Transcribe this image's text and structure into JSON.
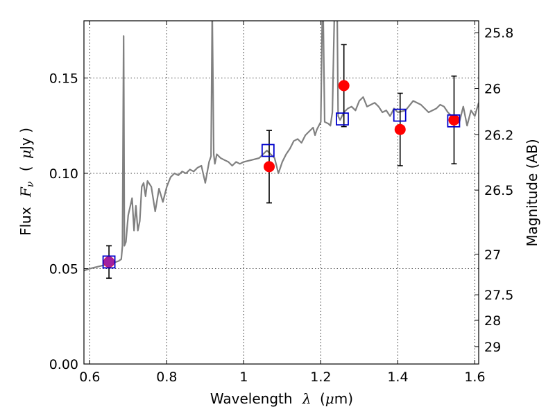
{
  "chart_data": {
    "type": "line",
    "xlabel_prefix": "Wavelength",
    "xlabel_math": "λ",
    "xlabel_suffix_pre": "(",
    "xlabel_math2": "μ",
    "xlabel_suffix": "m)",
    "ylabel_prefix": "Flux",
    "ylabel_math": "F",
    "ylabel_sub": "ν",
    "ylabel_open": "(",
    "ylabel_math2": "μ",
    "ylabel_suffix": "Jy )",
    "y2label": "Magnitude (AB)",
    "xlim": [
      0.585,
      1.61
    ],
    "ylim": [
      0.0,
      0.18
    ],
    "grid": true,
    "x_ticks": [
      {
        "v": 0.6,
        "label": "0.6"
      },
      {
        "v": 0.8,
        "label": "0.8"
      },
      {
        "v": 1.0,
        "label": "1"
      },
      {
        "v": 1.2,
        "label": "1.2"
      },
      {
        "v": 1.4,
        "label": "1.4"
      },
      {
        "v": 1.6,
        "label": "1.6"
      }
    ],
    "y_ticks": [
      {
        "v": 0.0,
        "label": "0.00"
      },
      {
        "v": 0.05,
        "label": "0.05"
      },
      {
        "v": 0.1,
        "label": "0.10"
      },
      {
        "v": 0.15,
        "label": "0.15"
      }
    ],
    "y2_ticks": [
      {
        "mag": 25.8,
        "label": "25.8"
      },
      {
        "mag": 26.0,
        "label": "26"
      },
      {
        "mag": 26.2,
        "label": "26.2"
      },
      {
        "mag": 26.5,
        "label": "26.5"
      },
      {
        "mag": 27.0,
        "label": "27"
      },
      {
        "mag": 27.5,
        "label": "27.5"
      },
      {
        "mag": 28.0,
        "label": "28"
      },
      {
        "mag": 29.0,
        "label": "29"
      }
    ],
    "model_spectrum": {
      "color": "#808080",
      "x": [
        0.585,
        0.6,
        0.62,
        0.64,
        0.66,
        0.675,
        0.682,
        0.685,
        0.688,
        0.69,
        0.694,
        0.7,
        0.71,
        0.715,
        0.72,
        0.725,
        0.73,
        0.735,
        0.74,
        0.745,
        0.75,
        0.76,
        0.77,
        0.78,
        0.79,
        0.8,
        0.81,
        0.82,
        0.83,
        0.84,
        0.85,
        0.86,
        0.87,
        0.88,
        0.89,
        0.9,
        0.91,
        0.915,
        0.918,
        0.922,
        0.925,
        0.93,
        0.94,
        0.95,
        0.96,
        0.97,
        0.98,
        0.99,
        1.0,
        1.02,
        1.04,
        1.06,
        1.08,
        1.09,
        1.095,
        1.1,
        1.11,
        1.12,
        1.13,
        1.14,
        1.15,
        1.16,
        1.17,
        1.18,
        1.185,
        1.19,
        1.195,
        1.2,
        1.205,
        1.21,
        1.22,
        1.225,
        1.23,
        1.235,
        1.24,
        1.245,
        1.25,
        1.26,
        1.27,
        1.28,
        1.29,
        1.3,
        1.31,
        1.32,
        1.33,
        1.34,
        1.35,
        1.36,
        1.37,
        1.38,
        1.39,
        1.4,
        1.42,
        1.44,
        1.46,
        1.48,
        1.5,
        1.51,
        1.52,
        1.53,
        1.54,
        1.55,
        1.56,
        1.57,
        1.58,
        1.59,
        1.6,
        1.61
      ],
      "y": [
        0.049,
        0.05,
        0.051,
        0.052,
        0.053,
        0.054,
        0.055,
        0.062,
        0.172,
        0.062,
        0.064,
        0.078,
        0.087,
        0.07,
        0.083,
        0.07,
        0.075,
        0.093,
        0.095,
        0.088,
        0.096,
        0.093,
        0.08,
        0.092,
        0.085,
        0.093,
        0.098,
        0.1,
        0.099,
        0.101,
        0.1,
        0.102,
        0.101,
        0.103,
        0.104,
        0.095,
        0.106,
        0.109,
        0.185,
        0.11,
        0.105,
        0.11,
        0.108,
        0.107,
        0.106,
        0.104,
        0.106,
        0.105,
        0.106,
        0.107,
        0.108,
        0.112,
        0.108,
        0.1,
        0.103,
        0.106,
        0.11,
        0.113,
        0.117,
        0.118,
        0.116,
        0.12,
        0.122,
        0.124,
        0.12,
        0.123,
        0.125,
        0.127,
        0.2,
        0.127,
        0.126,
        0.125,
        0.132,
        0.18,
        0.24,
        0.13,
        0.128,
        0.132,
        0.134,
        0.135,
        0.133,
        0.138,
        0.14,
        0.135,
        0.136,
        0.137,
        0.135,
        0.132,
        0.133,
        0.13,
        0.134,
        0.132,
        0.133,
        0.138,
        0.136,
        0.132,
        0.134,
        0.136,
        0.135,
        0.132,
        0.13,
        0.128,
        0.127,
        0.135,
        0.125,
        0.133,
        0.13,
        0.137
      ]
    },
    "synthetic_points": {
      "marker": "square",
      "color": "#0000cc",
      "x": [
        0.65,
        1.063,
        1.256,
        1.405,
        1.545
      ],
      "y": [
        0.0535,
        0.112,
        0.1285,
        0.1305,
        0.1275
      ]
    },
    "observed_points": {
      "marker": "circle",
      "color": "#ff0000",
      "x": [
        0.65,
        1.066,
        1.26,
        1.406,
        1.546
      ],
      "y": [
        0.0535,
        0.1035,
        0.146,
        0.123,
        0.128
      ],
      "yerr": [
        0.0085,
        0.019,
        0.0215,
        0.019,
        0.023
      ]
    },
    "mag_zero_point": 23.9
  }
}
